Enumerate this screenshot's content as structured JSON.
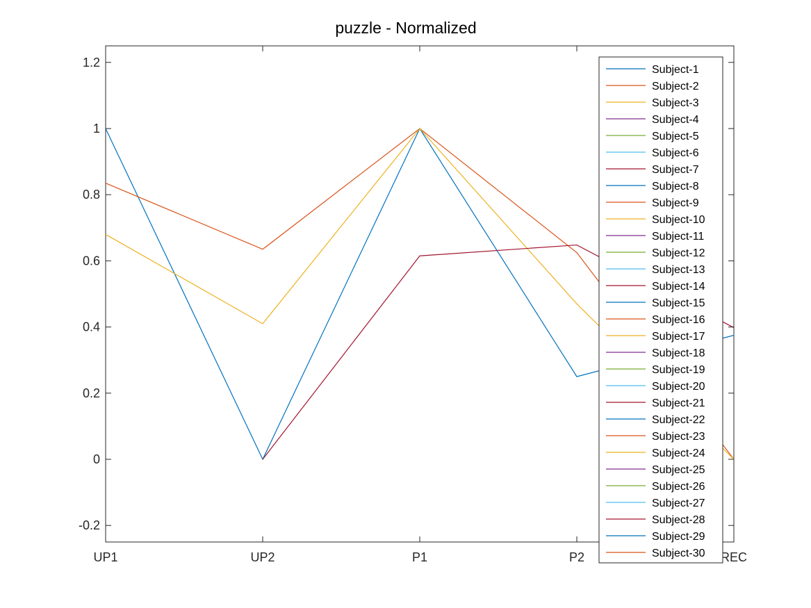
{
  "chart_data": {
    "type": "line",
    "title": "puzzle - Normalized",
    "xlabel": "",
    "ylabel": "",
    "categories": [
      "UP1",
      "UP2",
      "P1",
      "P2",
      "REC"
    ],
    "ylim": [
      -0.25,
      1.25
    ],
    "yticks": [
      -0.2,
      0,
      0.2,
      0.4,
      0.6,
      0.8,
      1,
      1.2
    ],
    "grid": false,
    "legend_position": "top-right",
    "palette": [
      "#0072BD",
      "#D95319",
      "#EDB120",
      "#7E2F8E",
      "#77AC30",
      "#4DBEEE",
      "#A2142F"
    ],
    "series": [
      {
        "name": "Subject-1",
        "values": [
          1,
          0,
          1,
          0.25,
          0.375
        ]
      },
      {
        "name": "Subject-2",
        "values": [
          0.835,
          0.635,
          1,
          0.625,
          0
        ]
      },
      {
        "name": "Subject-3",
        "values": [
          0.68,
          0.41,
          1,
          0.47,
          0
        ]
      },
      {
        "name": "Subject-4",
        "values": [
          null,
          null,
          null,
          null,
          null
        ]
      },
      {
        "name": "Subject-5",
        "values": [
          null,
          null,
          null,
          null,
          null
        ]
      },
      {
        "name": "Subject-6",
        "values": [
          null,
          null,
          null,
          null,
          null
        ]
      },
      {
        "name": "Subject-7",
        "values": [
          null,
          0,
          0.615,
          0.648,
          0.398
        ]
      },
      {
        "name": "Subject-8",
        "values": [
          null,
          null,
          null,
          null,
          null
        ]
      },
      {
        "name": "Subject-9",
        "values": [
          null,
          null,
          null,
          null,
          null
        ]
      },
      {
        "name": "Subject-10",
        "values": [
          null,
          null,
          null,
          null,
          null
        ]
      },
      {
        "name": "Subject-11",
        "values": [
          null,
          null,
          null,
          null,
          null
        ]
      },
      {
        "name": "Subject-12",
        "values": [
          null,
          null,
          null,
          null,
          null
        ]
      },
      {
        "name": "Subject-13",
        "values": [
          null,
          null,
          null,
          null,
          null
        ]
      },
      {
        "name": "Subject-14",
        "values": [
          null,
          null,
          null,
          null,
          null
        ]
      },
      {
        "name": "Subject-15",
        "values": [
          null,
          null,
          null,
          null,
          null
        ]
      },
      {
        "name": "Subject-16",
        "values": [
          null,
          null,
          null,
          null,
          null
        ]
      },
      {
        "name": "Subject-17",
        "values": [
          null,
          null,
          null,
          null,
          null
        ]
      },
      {
        "name": "Subject-18",
        "values": [
          null,
          null,
          null,
          null,
          null
        ]
      },
      {
        "name": "Subject-19",
        "values": [
          null,
          null,
          null,
          null,
          null
        ]
      },
      {
        "name": "Subject-20",
        "values": [
          null,
          null,
          null,
          null,
          null
        ]
      },
      {
        "name": "Subject-21",
        "values": [
          null,
          null,
          null,
          null,
          null
        ]
      },
      {
        "name": "Subject-22",
        "values": [
          null,
          null,
          null,
          null,
          null
        ]
      },
      {
        "name": "Subject-23",
        "values": [
          null,
          null,
          null,
          null,
          null
        ]
      },
      {
        "name": "Subject-24",
        "values": [
          null,
          null,
          null,
          null,
          null
        ]
      },
      {
        "name": "Subject-25",
        "values": [
          null,
          null,
          null,
          null,
          null
        ]
      },
      {
        "name": "Subject-26",
        "values": [
          null,
          null,
          null,
          null,
          null
        ]
      },
      {
        "name": "Subject-27",
        "values": [
          null,
          null,
          null,
          null,
          null
        ]
      },
      {
        "name": "Subject-28",
        "values": [
          null,
          null,
          null,
          null,
          null
        ]
      },
      {
        "name": "Subject-29",
        "values": [
          null,
          null,
          null,
          null,
          null
        ]
      },
      {
        "name": "Subject-30",
        "values": [
          null,
          null,
          null,
          null,
          null
        ]
      }
    ]
  }
}
